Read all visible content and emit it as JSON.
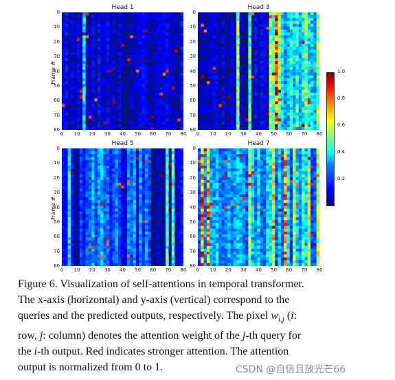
{
  "figure": {
    "panels": [
      {
        "title": "Head 1",
        "y_label": "Frame #"
      },
      {
        "title": "Head 3",
        "y_label": ""
      },
      {
        "title": "Head 5",
        "y_label": "Frame #"
      },
      {
        "title": "Head 7",
        "y_label": ""
      }
    ],
    "x_ticks": [
      "0",
      "10",
      "20",
      "30",
      "40",
      "50",
      "60",
      "70",
      "80"
    ],
    "y_ticks": [
      "0",
      "10",
      "20",
      "30",
      "40",
      "50",
      "60",
      "70",
      "80"
    ],
    "colorbar_ticks": [
      "1.0",
      "0.8",
      "0.6",
      "0.4",
      "0.2"
    ],
    "colormap": "jet"
  },
  "caption": {
    "line1": "Figure 6. Visualization of self-attentions in temporal transformer.",
    "line2": "The x-axis (horizontal) and y-axis (vertical) correspond to the",
    "line3a": "queries and the predicted outputs, respectively. The pixel ",
    "math_w": "w",
    "math_sub": "i,j",
    "line3b": " (",
    "math_i": "i",
    "line3c": ":",
    "line4a": "row, ",
    "math_j": "j",
    "line4b": ": column) denotes the attention weight of the ",
    "math_j2": "j",
    "line4c": "-th query for",
    "line5a": "the ",
    "math_i2": "i",
    "line5b": "-th output.  Red indicates stronger attention.  The attention",
    "line6": "output is normalized from 0 to 1."
  },
  "watermark": "CSDN @自信且放光芒66"
}
